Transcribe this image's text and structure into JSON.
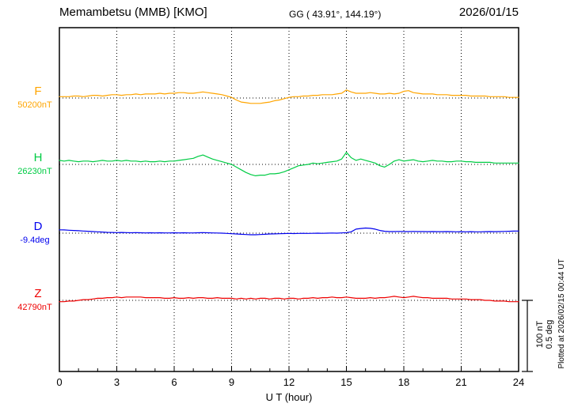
{
  "header": {
    "station": "Memambetsu (MMB)  [KMO]",
    "coords": "GG ( 43.91°, 144.19°)",
    "date": "2026/01/15"
  },
  "xlabel": "U T (hour)",
  "x_ticks": [
    "0",
    "3",
    "6",
    "9",
    "12",
    "15",
    "18",
    "21",
    "24"
  ],
  "scale_bar": {
    "label_nt": "100 nT",
    "label_deg": "0.5 deg"
  },
  "plotted_at": "Plotted at 2026/02/15 00:44 UT",
  "chart_data": {
    "type": "line",
    "title": "Memambetsu (MMB) [KMO] magnetogram 2026/01/15",
    "x_unit": "hour",
    "x_range": [
      0,
      24
    ],
    "x_step": 0.25,
    "grid": "dotted vertical every 3 h, dotted horizontal baseline per trace",
    "scale": {
      "nT_per_div": 100,
      "deg_per_div": 0.5
    },
    "series": [
      {
        "name": "F",
        "baseline_label": "50200nT",
        "unit": "nT",
        "color": "#FFA500",
        "offsets": [
          2,
          2,
          2,
          3,
          3,
          2,
          3,
          4,
          4,
          3,
          4,
          5,
          5,
          4,
          5,
          5,
          6,
          5,
          6,
          6,
          6,
          7,
          6,
          7,
          7,
          8,
          8,
          7,
          7,
          8,
          9,
          8,
          7,
          6,
          5,
          3,
          1,
          -3,
          -6,
          -7,
          -8,
          -8,
          -8,
          -7,
          -6,
          -4,
          -3,
          -1,
          1,
          2,
          2,
          3,
          3,
          4,
          4,
          5,
          5,
          5,
          6,
          7,
          12,
          9,
          7,
          7,
          7,
          8,
          7,
          6,
          6,
          7,
          6,
          7,
          10,
          11,
          8,
          7,
          6,
          6,
          6,
          5,
          5,
          5,
          4,
          4,
          4,
          4,
          3,
          3,
          3,
          3,
          2,
          2,
          2,
          2,
          1,
          1,
          1
        ]
      },
      {
        "name": "H",
        "baseline_label": "26230nT",
        "unit": "nT",
        "color": "#00CC44",
        "offsets": [
          6,
          5,
          6,
          5,
          4,
          5,
          5,
          4,
          5,
          6,
          5,
          5,
          6,
          5,
          6,
          5,
          5,
          4,
          5,
          4,
          4,
          5,
          4,
          5,
          5,
          6,
          7,
          8,
          9,
          12,
          14,
          11,
          8,
          6,
          4,
          2,
          0,
          -4,
          -8,
          -12,
          -15,
          -17,
          -16,
          -16,
          -14,
          -14,
          -13,
          -11,
          -8,
          -5,
          -2,
          -1,
          0,
          2,
          1,
          2,
          3,
          4,
          5,
          8,
          18,
          10,
          6,
          8,
          6,
          4,
          2,
          -2,
          -4,
          0,
          5,
          7,
          5,
          6,
          7,
          5,
          4,
          5,
          6,
          5,
          5,
          4,
          4,
          5,
          5,
          4,
          4,
          3,
          3,
          3,
          3,
          2,
          2,
          2,
          2,
          2,
          2
        ]
      },
      {
        "name": "D",
        "baseline_label": "-9.4deg",
        "unit": "deg",
        "color": "#0000EE",
        "offsets": [
          0.025,
          0.024,
          0.022,
          0.02,
          0.018,
          0.016,
          0.014,
          0.012,
          0.01,
          0.008,
          0.006,
          0.005,
          0.004,
          0.005,
          0.004,
          0.003,
          0.004,
          0.003,
          0.002,
          0.003,
          0.002,
          0.003,
          0.002,
          0.002,
          0.003,
          0.002,
          0.003,
          0.002,
          0.002,
          0.003,
          0.004,
          0.003,
          0.002,
          0.001,
          0,
          -0.002,
          -0.004,
          -0.006,
          -0.008,
          -0.01,
          -0.012,
          -0.012,
          -0.01,
          -0.008,
          -0.006,
          -0.005,
          -0.004,
          -0.003,
          -0.002,
          -0.003,
          -0.002,
          -0.001,
          -0.002,
          -0.001,
          0,
          -0.001,
          0,
          0.001,
          0,
          0.002,
          0.004,
          0.01,
          0.03,
          0.035,
          0.038,
          0.036,
          0.03,
          0.02,
          0.014,
          0.012,
          0.012,
          0.013,
          0.012,
          0.012,
          0.013,
          0.012,
          0.012,
          0.011,
          0.012,
          0.011,
          0.011,
          0.012,
          0.011,
          0.01,
          0.011,
          0.01,
          0.011,
          0.01,
          0.01,
          0.011,
          0.012,
          0.011,
          0.012,
          0.013,
          0.014,
          0.015,
          0.016
        ]
      },
      {
        "name": "Z",
        "baseline_label": "42790nT",
        "unit": "nT",
        "color": "#EE0000",
        "offsets": [
          -2,
          -2,
          -1,
          -1,
          0,
          1,
          1,
          2,
          3,
          3,
          4,
          4,
          5,
          4,
          5,
          5,
          5,
          5,
          4,
          4,
          4,
          4,
          3,
          3,
          4,
          3,
          3,
          4,
          3,
          4,
          4,
          3,
          3,
          4,
          3,
          3,
          3,
          2,
          3,
          2,
          3,
          2,
          3,
          3,
          2,
          3,
          3,
          2,
          3,
          3,
          2,
          3,
          3,
          4,
          3,
          4,
          4,
          5,
          4,
          4,
          5,
          4,
          3,
          3,
          3,
          4,
          3,
          4,
          4,
          5,
          6,
          5,
          4,
          5,
          6,
          5,
          4,
          4,
          3,
          3,
          3,
          3,
          2,
          2,
          2,
          2,
          1,
          1,
          1,
          0,
          0,
          -1,
          -1,
          -1,
          -2,
          -2,
          -2
        ]
      }
    ]
  }
}
